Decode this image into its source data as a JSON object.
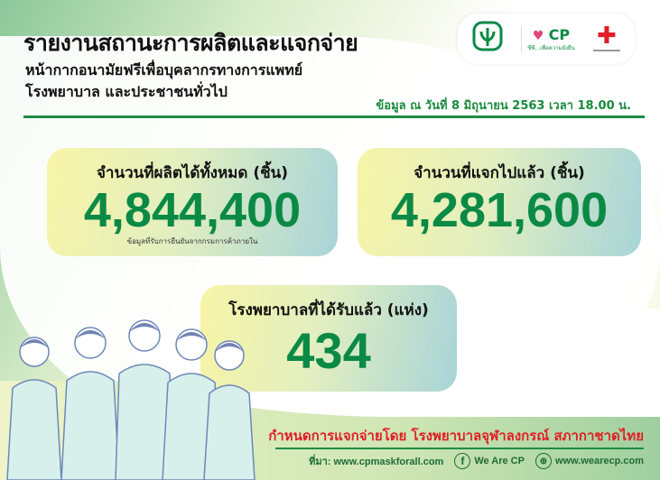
{
  "header": {
    "title": "รายงานสถานะการผลิตและแจกจ่าย",
    "subtitle_line1": "หน้ากากอนามัยฟรีเพื่อบุคลากรทางการแพทย์",
    "subtitle_line2": "โรงพยาบาล และประชาชนทั่วไป",
    "date": "ข้อมูล ณ วันที่ 8 มิถุนายน 2563 เวลา 18.00 น."
  },
  "logos": {
    "cp_tagline": "ซีพี...เพื่อความยั่งยืน",
    "cp_mark": "CP"
  },
  "stats": [
    {
      "label": "จำนวนที่ผลิตได้ทั้งหมด (ชิ้น)",
      "value": "4,844,400",
      "note": "ข้อมูลที่รับการยืนยันจากกรมการค้าภายใน"
    },
    {
      "label": "จำนวนที่แจกไปแล้ว (ชิ้น)",
      "value": "4,281,600"
    },
    {
      "label": "โรงพยาบาลที่ได้รับแล้ว (แห่ง)",
      "value": "434"
    }
  ],
  "distribution_note": "กำหนดการแจกจ่ายโดย โรงพยาบาลจุฬาลงกรณ์ สภากาชาดไทย",
  "footer": {
    "source": "ที่มา: www.cpmaskforall.com",
    "facebook": "We Are CP",
    "website": "www.wearecp.com"
  },
  "colors": {
    "accent_green": "#0b8a45",
    "red": "#e01e26"
  }
}
